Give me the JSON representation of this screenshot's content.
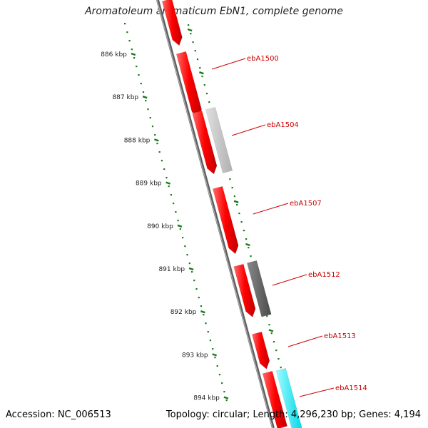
{
  "title": "Aromatoleum aromaticum EbN1, complete genome",
  "footer": {
    "accession": "Accession: NC_006513",
    "summary": "Topology: circular; Length: 4,296,230 bp; Genes: 4,194"
  },
  "ruler": {
    "color": "#1a7a1a",
    "ticks": [
      "886 kbp",
      "887 kbp",
      "888 kbp",
      "889 kbp",
      "890 kbp",
      "891 kbp",
      "892 kbp",
      "893 kbp",
      "894 kbp"
    ]
  },
  "backbone_color": "#808080",
  "gene_labels": {
    "color": "#cc0000",
    "items": [
      "ebA1500",
      "ebA1504",
      "ebA1507",
      "ebA1512",
      "ebA1513",
      "ebA1514"
    ]
  },
  "features": {
    "main_color": "#ff0000",
    "inner_colors": {
      "light_gray": "#c0c0c0",
      "dark_gray": "#666666",
      "cyan": "#00ffff"
    }
  }
}
